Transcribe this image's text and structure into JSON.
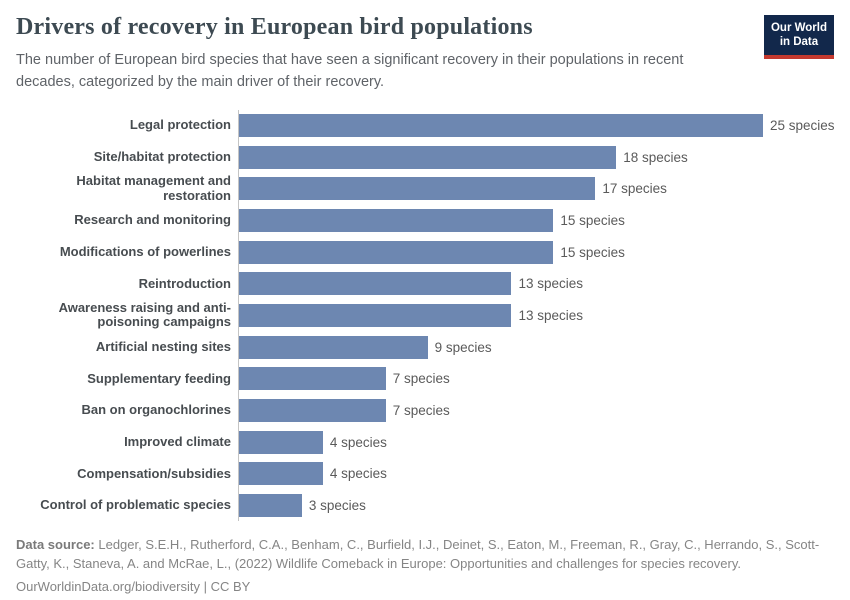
{
  "header": {
    "title": "Drivers of recovery in European bird populations",
    "subtitle": "The number of European bird species that have seen a significant recovery in their populations in recent decades, categorized by the main driver of their recovery.",
    "logo": {
      "line1": "Our World",
      "line2": "in Data"
    }
  },
  "chart_data": {
    "type": "bar",
    "orientation": "horizontal",
    "title": "Drivers of recovery in European bird populations",
    "categories": [
      "Legal protection",
      "Site/habitat protection",
      "Habitat management and restoration",
      "Research and monitoring",
      "Modifications of powerlines",
      "Reintroduction",
      "Awareness raising and anti-poisoning campaigns",
      "Artificial nesting sites",
      "Supplementary feeding",
      "Ban on organochlorines",
      "Improved climate",
      "Compensation/subsidies",
      "Control of problematic species"
    ],
    "values": [
      25,
      18,
      17,
      15,
      15,
      13,
      13,
      9,
      7,
      7,
      4,
      4,
      3
    ],
    "value_suffix": " species",
    "xlim": [
      0,
      25
    ],
    "grid": false,
    "legend": false,
    "bar_color": "#6D87B1",
    "axis_color": "#c4c4c4"
  },
  "footer": {
    "source_label": "Data source:",
    "source_text": " Ledger, S.E.H., Rutherford, C.A., Benham, C., Burfield, I.J., Deinet, S., Eaton, M., Freeman, R., Gray, C., Herrando, S., Scott-Gatty, K., Staneva, A. and McRae, L., (2022) Wildlife Comeback in Europe: Opportunities and challenges for species recovery.",
    "link_text": "OurWorldinData.org/biodiversity",
    "separator": " | ",
    "license_text": "CC BY"
  },
  "colors": {
    "bar": "#6D87B1",
    "title": "#3d4a52",
    "subtitle": "#5f6368",
    "category_label": "#474c50",
    "value_label": "#5a5a5a",
    "footer_text": "#858585",
    "logo_background": "#12284B",
    "logo_stripe": "#C4392F",
    "axis_line": "#c4c4c4"
  }
}
